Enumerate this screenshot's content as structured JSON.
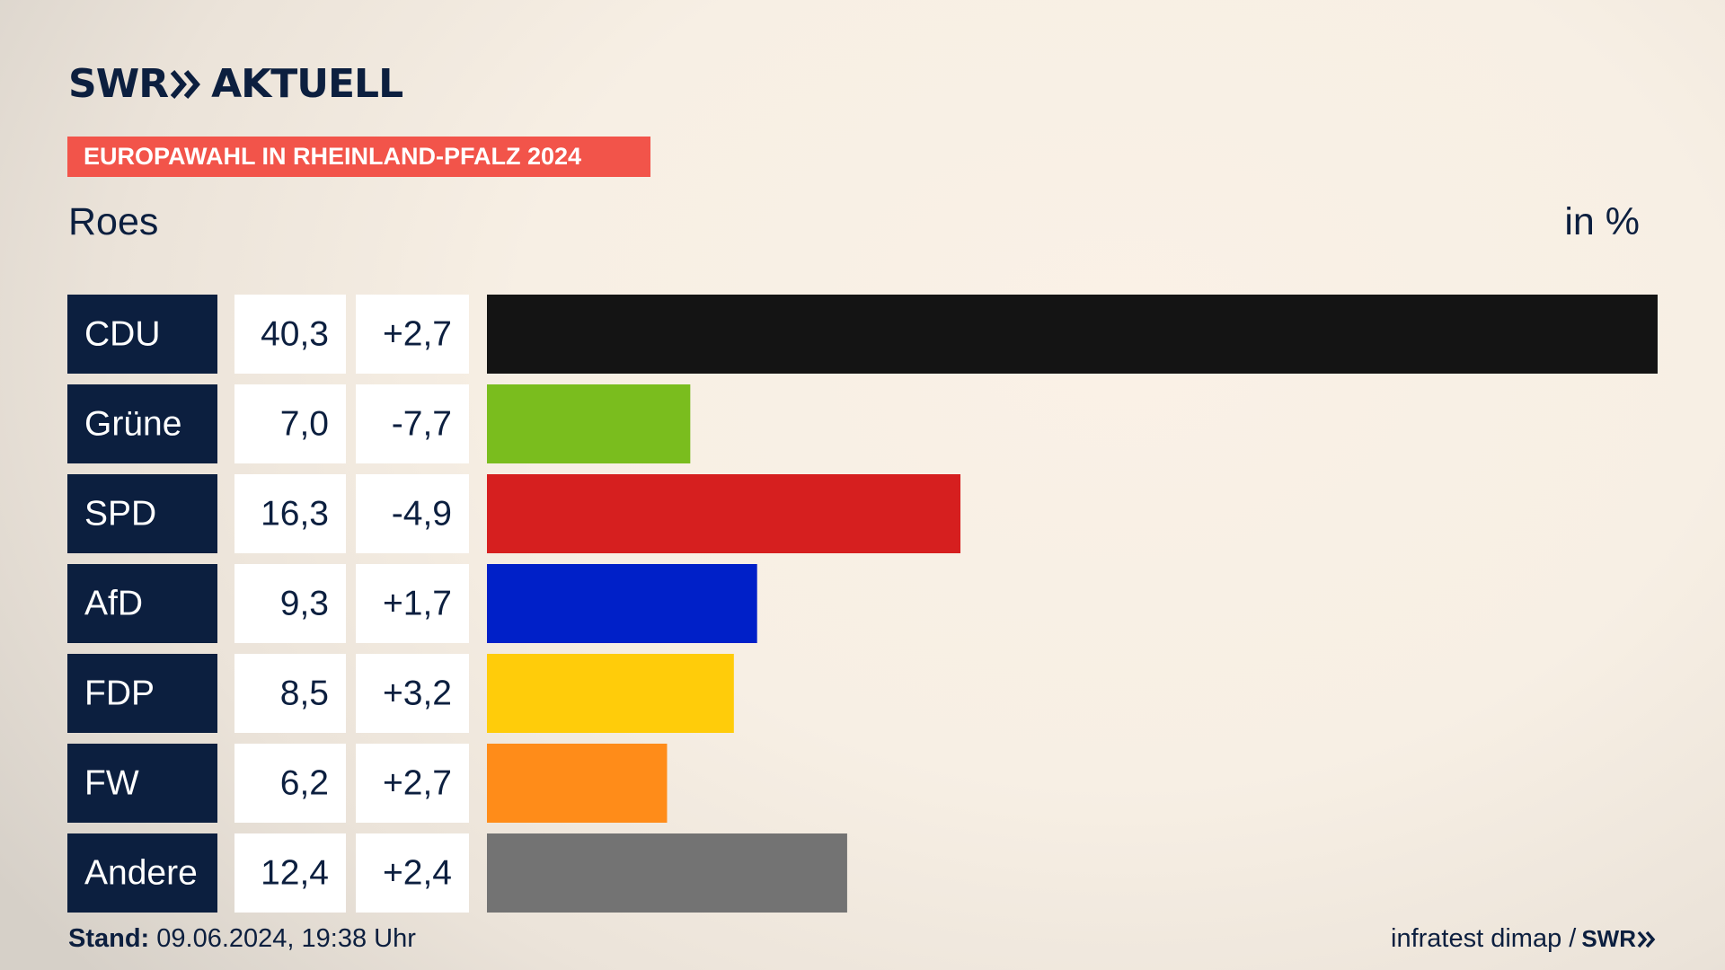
{
  "header": {
    "logo_text_left": "SWR",
    "logo_text_right": "AKTUELL",
    "badge": "EUROPAWAHL IN RHEINLAND-PFALZ 2024",
    "subtitle": "Roes",
    "unit": "in %"
  },
  "footer": {
    "stand_label": "Stand:",
    "stand_value": "09.06.2024, 19:38 Uhr",
    "source": "infratest dimap /",
    "source_logo": "SWR"
  },
  "colors": {
    "navy": "#0c1f3f",
    "badge": "#f2544a"
  },
  "chart_data": {
    "type": "bar",
    "orientation": "horizontal",
    "unit": "in %",
    "categories": [
      "CDU",
      "Grüne",
      "SPD",
      "AfD",
      "FDP",
      "FW",
      "Andere"
    ],
    "values": [
      40.3,
      7.0,
      16.3,
      9.3,
      8.5,
      6.2,
      12.4
    ],
    "value_labels": [
      "40,3",
      "7,0",
      "16,3",
      "9,3",
      "8,5",
      "6,2",
      "12,4"
    ],
    "change_labels": [
      "+2,7",
      "-7,7",
      "-4,9",
      "+1,7",
      "+3,2",
      "+2,7",
      "+2,4"
    ],
    "changes": [
      2.7,
      -7.7,
      -4.9,
      1.7,
      3.2,
      2.7,
      2.4
    ],
    "colors": [
      "#141414",
      "#7abd1e",
      "#d61f1f",
      "#0020c8",
      "#ffcc0a",
      "#ff8c19",
      "#737373"
    ],
    "xlim": [
      0,
      40.3
    ]
  }
}
